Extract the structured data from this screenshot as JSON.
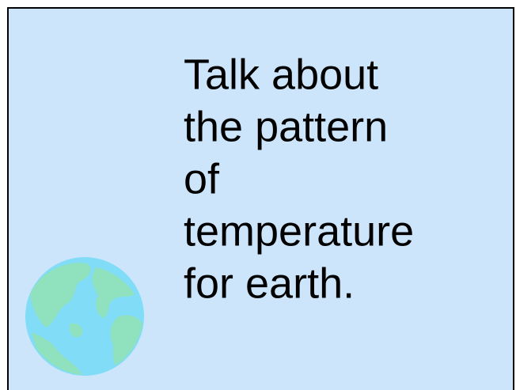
{
  "slide": {
    "text_lines": [
      "Talk about",
      "the pattern",
      "of",
      "temperature",
      "for earth."
    ]
  }
}
